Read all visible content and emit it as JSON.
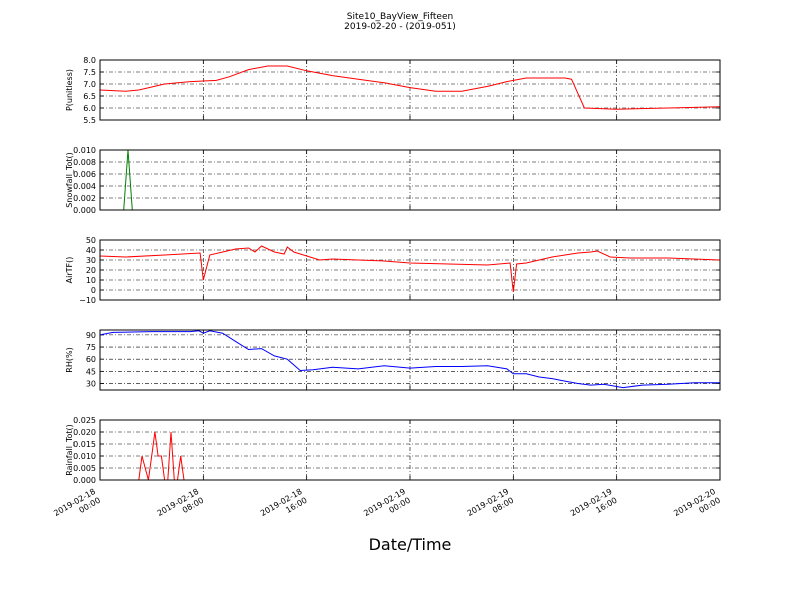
{
  "figure": {
    "title": "Site10_BayView_Fifteen",
    "subtitle": "2019-02-20 - (2019-051)",
    "xlabel": "Date/Time"
  },
  "x_ticks": [
    {
      "line1": "2019-02-18",
      "line2": "00:00"
    },
    {
      "line1": "2019-02-18",
      "line2": "08:00"
    },
    {
      "line1": "2019-02-18",
      "line2": "16:00"
    },
    {
      "line1": "2019-02-19",
      "line2": "00:00"
    },
    {
      "line1": "2019-02-19",
      "line2": "08:00"
    },
    {
      "line1": "2019-02-19",
      "line2": "16:00"
    },
    {
      "line1": "2019-02-20",
      "line2": "00:00"
    }
  ],
  "colors": {
    "p": "#ff0000",
    "snow": "#008000",
    "air": "#ff0000",
    "rh": "#0000ff",
    "rain": "#ff0000"
  },
  "chart_data": [
    {
      "type": "line",
      "ylabel": "P(unitless)",
      "ylim": [
        5.5,
        8.0
      ],
      "yticks": [
        "5.5",
        "6.0",
        "6.5",
        "7.0",
        "7.5",
        "8.0"
      ],
      "grid": true,
      "color_key": "p",
      "x": [
        "2019-02-18 00:00",
        "2019-02-18 02:00",
        "2019-02-18 03:00",
        "2019-02-18 05:00",
        "2019-02-18 07:00",
        "2019-02-18 09:00",
        "2019-02-18 10:00",
        "2019-02-18 11:30",
        "2019-02-18 13:00",
        "2019-02-18 14:30",
        "2019-02-18 16:00",
        "2019-02-18 18:00",
        "2019-02-18 20:00",
        "2019-02-18 22:00",
        "2019-02-19 00:00",
        "2019-02-19 02:00",
        "2019-02-19 04:00",
        "2019-02-19 06:00",
        "2019-02-19 07:30",
        "2019-02-19 09:00",
        "2019-02-19 10:00",
        "2019-02-19 11:00",
        "2019-02-19 12:00",
        "2019-02-19 12:30",
        "2019-02-19 13:30",
        "2019-02-19 16:00",
        "2019-02-19 20:00",
        "2019-02-20 00:00"
      ],
      "y": [
        6.75,
        6.7,
        6.75,
        7.0,
        7.1,
        7.15,
        7.3,
        7.6,
        7.75,
        7.75,
        7.55,
        7.35,
        7.2,
        7.05,
        6.85,
        6.7,
        6.7,
        6.9,
        7.1,
        7.25,
        7.25,
        7.25,
        7.25,
        7.2,
        6.0,
        5.95,
        6.0,
        6.05
      ]
    },
    {
      "type": "line",
      "ylabel": "Snowfall_Tot()",
      "ylim": [
        0.0,
        0.01
      ],
      "yticks": [
        "0.000",
        "0.002",
        "0.004",
        "0.006",
        "0.008",
        "0.010"
      ],
      "grid": true,
      "color_key": "snow",
      "x": [
        "2019-02-18 00:00",
        "2019-02-18 01:50",
        "2019-02-18 02:10",
        "2019-02-18 02:30",
        "2019-02-20 00:00"
      ],
      "y": [
        0,
        0,
        0.01,
        0,
        0
      ]
    },
    {
      "type": "line",
      "ylabel": "AirTF()",
      "ylim": [
        -10,
        50
      ],
      "yticks": [
        "−10",
        "0",
        "10",
        "20",
        "30",
        "40",
        "50"
      ],
      "grid": true,
      "color_key": "air",
      "x": [
        "2019-02-18 00:00",
        "2019-02-18 02:00",
        "2019-02-18 05:00",
        "2019-02-18 07:45",
        "2019-02-18 08:00",
        "2019-02-18 08:30",
        "2019-02-18 09:30",
        "2019-02-18 10:30",
        "2019-02-18 11:30",
        "2019-02-18 12:00",
        "2019-02-18 12:30",
        "2019-02-18 13:30",
        "2019-02-18 14:15",
        "2019-02-18 14:30",
        "2019-02-18 15:00",
        "2019-02-18 16:00",
        "2019-02-18 17:00",
        "2019-02-18 18:00",
        "2019-02-18 20:00",
        "2019-02-18 22:00",
        "2019-02-19 00:00",
        "2019-02-19 03:00",
        "2019-02-19 06:00",
        "2019-02-19 07:45",
        "2019-02-19 08:00",
        "2019-02-19 08:15",
        "2019-02-19 09:00",
        "2019-02-19 10:00",
        "2019-02-19 11:00",
        "2019-02-19 12:00",
        "2019-02-19 13:00",
        "2019-02-19 14:00",
        "2019-02-19 14:30",
        "2019-02-19 15:30",
        "2019-02-19 17:00",
        "2019-02-19 20:00",
        "2019-02-20 00:00"
      ],
      "y": [
        34,
        33,
        35,
        37,
        10,
        35,
        38,
        41,
        42,
        38,
        44,
        38,
        36,
        43,
        38,
        34,
        30,
        31,
        30,
        29,
        27,
        26,
        25,
        27,
        -2,
        26,
        27,
        30,
        33,
        35,
        37,
        38,
        39,
        33,
        32,
        32,
        30
      ]
    },
    {
      "type": "line",
      "ylabel": "RH(%)",
      "ylim": [
        22,
        96
      ],
      "yticks": [
        "30",
        "45",
        "60",
        "75",
        "90"
      ],
      "grid": true,
      "color_key": "rh",
      "x": [
        "2019-02-18 00:00",
        "2019-02-18 01:00",
        "2019-02-18 04:00",
        "2019-02-18 07:00",
        "2019-02-18 07:40",
        "2019-02-18 08:00",
        "2019-02-18 08:30",
        "2019-02-18 09:30",
        "2019-02-18 10:30",
        "2019-02-18 11:30",
        "2019-02-18 12:30",
        "2019-02-18 13:30",
        "2019-02-18 14:30",
        "2019-02-18 15:30",
        "2019-02-18 16:30",
        "2019-02-18 18:00",
        "2019-02-18 20:00",
        "2019-02-18 22:00",
        "2019-02-19 00:00",
        "2019-02-19 02:00",
        "2019-02-19 04:00",
        "2019-02-19 06:00",
        "2019-02-19 07:30",
        "2019-02-19 08:00",
        "2019-02-19 09:00",
        "2019-02-19 10:00",
        "2019-02-19 11:00",
        "2019-02-19 12:00",
        "2019-02-19 13:00",
        "2019-02-19 14:00",
        "2019-02-19 15:00",
        "2019-02-19 16:30",
        "2019-02-19 18:00",
        "2019-02-19 20:00",
        "2019-02-19 22:00",
        "2019-02-20 00:00"
      ],
      "y": [
        90,
        93,
        94,
        94,
        95,
        92,
        95,
        92,
        82,
        72,
        73,
        64,
        60,
        46,
        47,
        50,
        48,
        52,
        49,
        51,
        51,
        52,
        48,
        42,
        42,
        38,
        36,
        33,
        30,
        28,
        29,
        25,
        28,
        29,
        31,
        31
      ]
    },
    {
      "type": "line",
      "ylabel": "Rainfall_Tot()",
      "ylim": [
        0.0,
        0.025
      ],
      "yticks": [
        "0.000",
        "0.005",
        "0.010",
        "0.015",
        "0.020",
        "0.025"
      ],
      "grid": true,
      "color_key": "rain",
      "x": [
        "2019-02-18 00:00",
        "2019-02-18 03:00",
        "2019-02-18 03:15",
        "2019-02-18 03:45",
        "2019-02-18 04:00",
        "2019-02-18 04:15",
        "2019-02-18 04:30",
        "2019-02-18 04:45",
        "2019-02-18 05:00",
        "2019-02-18 05:15",
        "2019-02-18 05:30",
        "2019-02-18 05:45",
        "2019-02-18 06:00",
        "2019-02-18 06:15",
        "2019-02-18 06:30",
        "2019-02-18 06:45",
        "2019-02-18 07:00",
        "2019-02-20 00:00"
      ],
      "y": [
        0,
        0,
        0.01,
        0,
        0.01,
        0.02,
        0.01,
        0.01,
        0,
        0,
        0.02,
        0,
        0,
        0.01,
        0,
        0,
        0,
        0
      ]
    }
  ]
}
